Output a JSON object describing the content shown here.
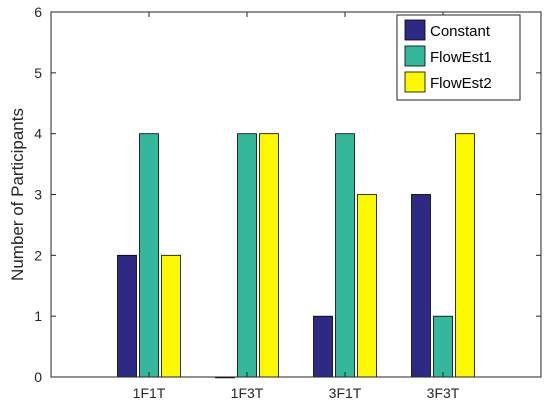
{
  "chart_data": {
    "type": "bar",
    "title": "",
    "xlabel": "",
    "ylabel": "Number of Participants",
    "categories": [
      "1F1T",
      "1F3T",
      "3F1T",
      "3F3T"
    ],
    "ylim": [
      0,
      6
    ],
    "yticks": [
      0,
      1,
      2,
      3,
      4,
      5,
      6
    ],
    "grid": false,
    "legend": "top-right",
    "series": [
      {
        "name": "Constant",
        "color": "#2e2a84",
        "values": [
          2,
          0,
          1,
          3
        ]
      },
      {
        "name": "FlowEst1",
        "color": "#35b79b",
        "values": [
          4,
          4,
          4,
          1
        ]
      },
      {
        "name": "FlowEst2",
        "color": "#fbf800",
        "values": [
          2,
          4,
          3,
          4
        ]
      }
    ]
  }
}
